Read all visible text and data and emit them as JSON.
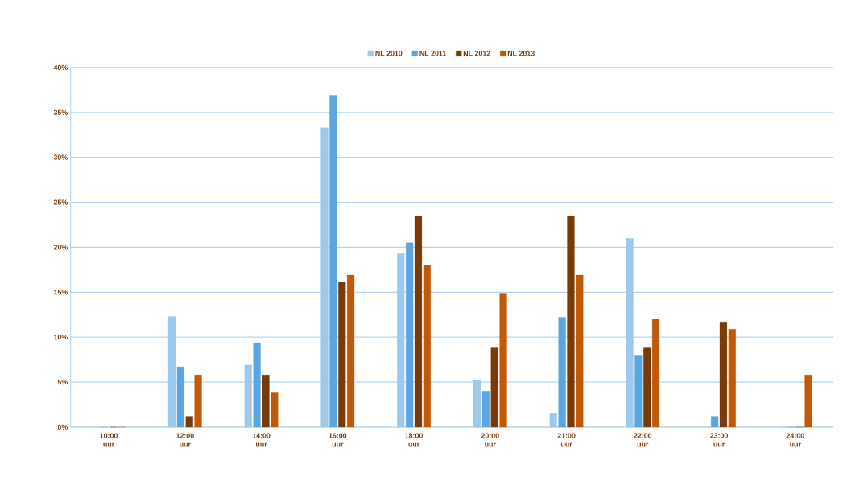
{
  "chart_data": {
    "type": "bar",
    "categories": [
      "10:00 uur",
      "12:00 uur",
      "14:00 uur",
      "16:00 uur",
      "18:00 uur",
      "20:00 uur",
      "21:00 uur",
      "22:00 uur",
      "23:00 uur",
      "24:00 uur"
    ],
    "series": [
      {
        "name": "NL 2010",
        "color": "#9dc9ec",
        "values": [
          0,
          12.3,
          6.9,
          33.3,
          19.3,
          5.2,
          1.5,
          21.0,
          0,
          0
        ]
      },
      {
        "name": "NL 2011",
        "color": "#5aa6e0",
        "values": [
          0,
          6.7,
          9.4,
          36.9,
          20.5,
          4.0,
          12.2,
          8.0,
          1.2,
          0
        ]
      },
      {
        "name": "NL 2012",
        "color": "#7a3a05",
        "values": [
          0,
          1.2,
          5.8,
          16.1,
          23.5,
          8.8,
          23.5,
          8.8,
          11.7,
          0
        ]
      },
      {
        "name": "NL 2013",
        "color": "#c05a08",
        "values": [
          0,
          5.8,
          3.9,
          16.9,
          18.0,
          14.9,
          16.9,
          12.0,
          10.9,
          5.8
        ]
      }
    ],
    "ylim": [
      0,
      40
    ],
    "yticks": [
      {
        "value": 0,
        "label": "0%"
      },
      {
        "value": 5,
        "label": "5%"
      },
      {
        "value": 10,
        "label": "10%"
      },
      {
        "value": 15,
        "label": "15%"
      },
      {
        "value": 20,
        "label": "20%"
      },
      {
        "value": 25,
        "label": "25%"
      },
      {
        "value": 30,
        "label": "30%"
      },
      {
        "value": 35,
        "label": "35%"
      },
      {
        "value": 40,
        "label": "40%"
      }
    ],
    "grid": "y",
    "legend": "top"
  }
}
